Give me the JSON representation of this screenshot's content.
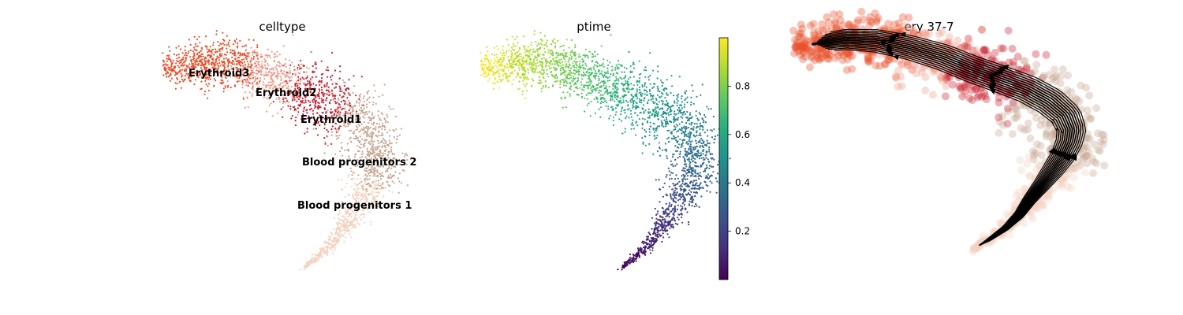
{
  "chart_data": [
    {
      "type": "scatter",
      "title": "celltype",
      "coloring": "categorical",
      "legend_placement": "on data",
      "axes_visible": false,
      "categories": [
        {
          "name": "Erythroid3",
          "color": "#e8502a"
        },
        {
          "name": "Erythroid2",
          "color": "#f09a8a"
        },
        {
          "name": "Erythroid1",
          "color": "#c8202f"
        },
        {
          "name": "Blood progenitors 2",
          "color": "#c6a692"
        },
        {
          "name": "Blood progenitors 1",
          "color": "#f4d2c0"
        }
      ]
    },
    {
      "type": "scatter",
      "title": "ptime",
      "coloring": "continuous",
      "colormap": "viridis",
      "colorbar": {
        "ticks": [
          0.2,
          0.4,
          0.6,
          0.8
        ],
        "range": [
          0.0,
          1.0
        ],
        "placement": "right"
      },
      "axes_visible": false
    },
    {
      "type": "streamplot",
      "title": "ery 37-7",
      "axes_visible": false,
      "background_categories": [
        "Erythroid3",
        "Erythroid2",
        "Erythroid1",
        "Blood progenitors 2",
        "Blood progenitors 1"
      ],
      "stream_color": "#000000",
      "flow_direction": "from Blood progenitors 1 toward Erythroid3"
    }
  ],
  "colors": {
    "Erythroid3": "#e8502a",
    "Erythroid2": "#f09a8a",
    "Erythroid1": "#c8202f",
    "Blood progenitors 2": "#c6a692",
    "Blood progenitors 1": "#f4d2c0",
    "streamlines": "#000000"
  }
}
